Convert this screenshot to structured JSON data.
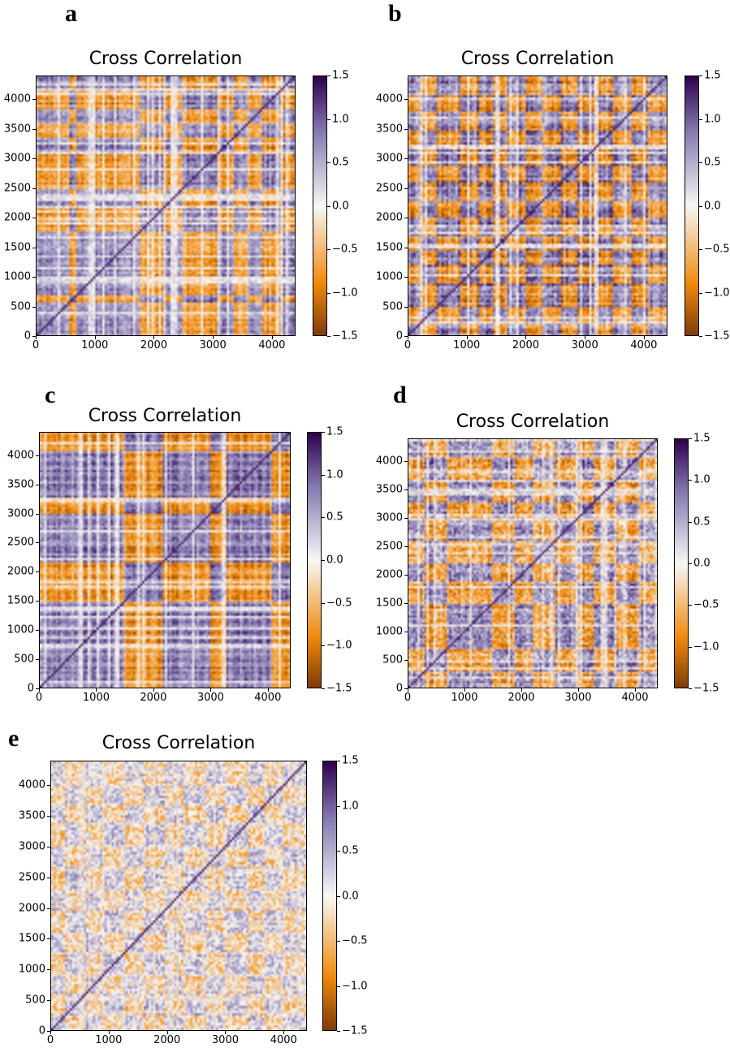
{
  "colors": {
    "vmin": "#7f3b08",
    "neg": "#f08a0c",
    "mid": "#f7f7f7",
    "pos": "#8073ac",
    "vmax": "#2d004b"
  },
  "chart_data": [
    {
      "panel": "a",
      "type": "heatmap",
      "title": "Cross Correlation",
      "xlim": [
        0,
        4400
      ],
      "ylim": [
        0,
        4400
      ],
      "x_ticks": [
        "0",
        "1000",
        "2000",
        "3000",
        "4000"
      ],
      "y_ticks": [
        "0",
        "500",
        "1000",
        "1500",
        "2000",
        "2500",
        "3000",
        "3500",
        "4000"
      ],
      "colorbar": {
        "range": [
          -1.5,
          1.5
        ],
        "ticks": [
          "1.5",
          "1.0",
          "0.5",
          "0.0",
          "−0.5",
          "−1.0",
          "−1.5"
        ]
      },
      "block_boundaries": [
        0,
        150,
        550,
        700,
        1000,
        1200,
        1450,
        1750,
        2150,
        2500,
        2750,
        3100,
        3350,
        3600,
        3850,
        4150,
        4400
      ],
      "block_signs": [
        1,
        1,
        -1,
        1,
        1,
        1,
        1,
        -1,
        1,
        -1,
        -1,
        1,
        -1,
        1,
        -1,
        1
      ],
      "strength": 1.0,
      "noise": 0.25
    },
    {
      "panel": "b",
      "type": "heatmap",
      "title": "Cross Correlation",
      "xlim": [
        0,
        4400
      ],
      "ylim": [
        0,
        4400
      ],
      "x_ticks": [
        "0",
        "1000",
        "2000",
        "3000",
        "4000"
      ],
      "y_ticks": [
        "0",
        "500",
        "1000",
        "1500",
        "2000",
        "2500",
        "3000",
        "3500",
        "4000"
      ],
      "colorbar": {
        "range": [
          -1.5,
          1.5
        ],
        "ticks": [
          "1.5",
          "1.0",
          "0.5",
          "0.0",
          "−0.5",
          "−1.0",
          "−1.5"
        ]
      },
      "block_boundaries": [
        0,
        200,
        500,
        900,
        1200,
        1450,
        1700,
        2000,
        2300,
        2600,
        2900,
        3200,
        3500,
        3800,
        4100,
        4400
      ],
      "block_signs": [
        1,
        -1,
        1,
        -1,
        1,
        -1,
        1,
        -1,
        1,
        -1,
        1,
        -1,
        1,
        -1,
        1
      ],
      "strength": 1.05,
      "noise": 0.3
    },
    {
      "panel": "c",
      "type": "heatmap",
      "title": "Cross Correlation",
      "xlim": [
        0,
        4400
      ],
      "ylim": [
        0,
        4400
      ],
      "x_ticks": [
        "0",
        "1000",
        "2000",
        "3000",
        "4000"
      ],
      "y_ticks": [
        "0",
        "500",
        "1000",
        "1500",
        "2000",
        "2500",
        "3000",
        "3500",
        "4000"
      ],
      "colorbar": {
        "range": [
          -1.5,
          1.5
        ],
        "ticks": [
          "1.5",
          "1.0",
          "0.5",
          "0.0",
          "−0.5",
          "−1.0",
          "−1.5"
        ]
      },
      "block_boundaries": [
        0,
        600,
        800,
        1500,
        1800,
        2150,
        2600,
        3000,
        3300,
        3700,
        4100,
        4400
      ],
      "block_signs": [
        1,
        1,
        1,
        -1,
        -1,
        1,
        1,
        -1,
        1,
        1,
        -1
      ],
      "strength": 1.05,
      "noise": 0.22
    },
    {
      "panel": "d",
      "type": "heatmap",
      "title": "Cross Correlation",
      "xlim": [
        0,
        4400
      ],
      "ylim": [
        0,
        4400
      ],
      "x_ticks": [
        "0",
        "1000",
        "2000",
        "3000",
        "4000"
      ],
      "y_ticks": [
        "0",
        "500",
        "1000",
        "1500",
        "2000",
        "2500",
        "3000",
        "3500",
        "4000"
      ],
      "colorbar": {
        "range": [
          -1.5,
          1.5
        ],
        "ticks": [
          "1.5",
          "1.0",
          "0.5",
          "0.0",
          "−0.5",
          "−1.0",
          "−1.5"
        ]
      },
      "block_boundaries": [
        0,
        300,
        700,
        1100,
        1500,
        1900,
        2200,
        2600,
        3000,
        3300,
        3700,
        4100,
        4400
      ],
      "block_signs": [
        1,
        -1,
        1,
        1,
        -1,
        1,
        -1,
        1,
        -1,
        1,
        -1,
        1
      ],
      "strength": 0.85,
      "noise": 0.4
    },
    {
      "panel": "e",
      "type": "heatmap",
      "title": "Cross Correlation",
      "xlim": [
        0,
        4400
      ],
      "ylim": [
        0,
        4400
      ],
      "x_ticks": [
        "0",
        "1000",
        "2000",
        "3000",
        "4000"
      ],
      "y_ticks": [
        "0",
        "500",
        "1000",
        "1500",
        "2000",
        "2500",
        "3000",
        "3500",
        "4000"
      ],
      "colorbar": {
        "range": [
          -1.5,
          1.5
        ],
        "ticks": [
          "1.5",
          "1.0",
          "0.5",
          "0.0",
          "−0.5",
          "−1.0",
          "−1.5"
        ]
      },
      "block_boundaries": [
        0,
        250,
        600,
        900,
        1300,
        1600,
        1950,
        2300,
        2700,
        3000,
        3400,
        3700,
        4000,
        4400
      ],
      "block_signs": [
        1,
        -1,
        1,
        -1,
        1,
        -1,
        1,
        -1,
        1,
        -1,
        1,
        -1,
        1
      ],
      "strength": 0.45,
      "noise": 0.45
    }
  ]
}
